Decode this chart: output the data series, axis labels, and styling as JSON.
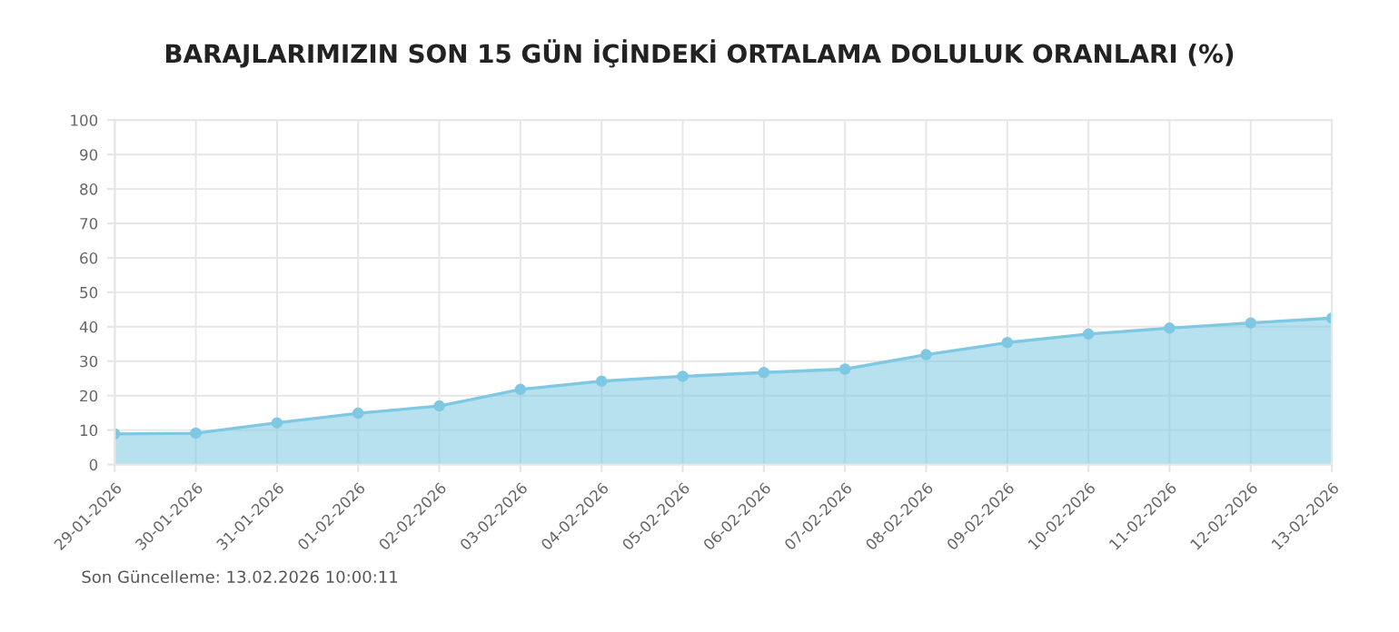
{
  "chart_data": {
    "type": "area",
    "title": "BARAJLARIMIZIN SON 15 GÜN İÇİNDEKİ ORTALAMA DOLULUK ORANLARI (%)",
    "categories": [
      "29-01-2026",
      "30-01-2026",
      "31-01-2026",
      "01-02-2026",
      "02-02-2026",
      "03-02-2026",
      "04-02-2026",
      "05-02-2026",
      "06-02-2026",
      "07-02-2026",
      "08-02-2026",
      "09-02-2026",
      "10-02-2026",
      "11-02-2026",
      "12-02-2026",
      "13-02-2026"
    ],
    "series": [
      {
        "color": "#7ec8e3",
        "values": [
          8.9,
          9.1,
          12.1,
          14.9,
          17.0,
          21.8,
          24.2,
          25.6,
          26.7,
          27.7,
          31.9,
          35.4,
          37.9,
          39.6,
          41.1,
          42.5
        ]
      }
    ],
    "ylim": [
      0,
      100
    ],
    "yticks": [
      0,
      10,
      20,
      30,
      40,
      50,
      60,
      70,
      80,
      90,
      100
    ],
    "grid": true,
    "marker": "circle",
    "annotations": [
      "Son Güncelleme: 13.02.2026 10:00:11"
    ]
  }
}
